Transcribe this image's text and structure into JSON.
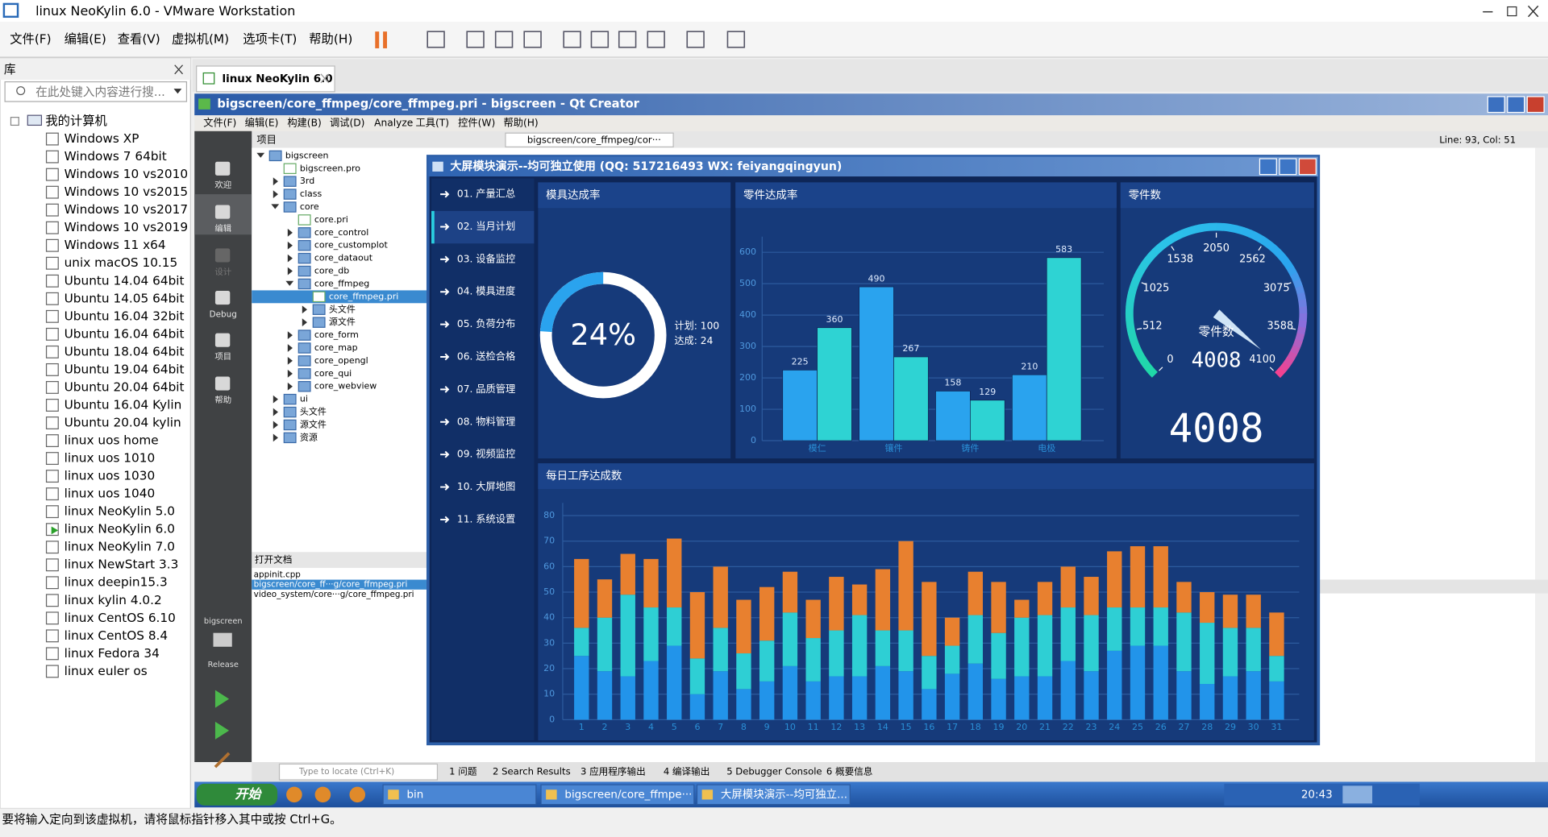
{
  "window": {
    "title": "linux NeoKylin 6.0 - VMware Workstation",
    "menu": [
      "文件(F)",
      "编辑(E)",
      "查看(V)",
      "虚拟机(M)",
      "选项卡(T)",
      "帮助(H)"
    ]
  },
  "library": {
    "title": "库",
    "search": "在此处键入内容进行搜...",
    "root": "我的计算机",
    "vms": [
      "Windows XP",
      "Windows 7 64bit",
      "Windows 10 vs2010",
      "Windows 10 vs2015",
      "Windows 10 vs2017",
      "Windows 10 vs2019",
      "Windows 11 x64",
      "unix macOS 10.15",
      "Ubuntu 14.04 64bit",
      "Ubuntu 14.05 64bit",
      "Ubuntu 16.04 32bit",
      "Ubuntu 16.04 64bit",
      "Ubuntu 18.04 64bit",
      "Ubuntu 19.04 64bit",
      "Ubuntu 20.04 64bit",
      "Ubuntu 16.04 Kylin",
      "Ubuntu 20.04 kylin",
      "linux uos home",
      "linux uos 1010",
      "linux uos 1030",
      "linux uos 1040",
      "linux NeoKylin 5.0",
      "linux NeoKylin 6.0",
      "linux NeoKylin 7.0",
      "linux NewStart 3.3",
      "linux deepin15.3",
      "linux kylin 4.0.2",
      "linux CentOS 6.10",
      "linux CentOS 8.4",
      "linux Fedora 34",
      "linux euler os"
    ],
    "running": 22
  },
  "vm_tab": "linux NeoKylin 6.0",
  "qt": {
    "title": "bigscreen/core_ffmpeg/core_ffmpeg.pri - bigscreen - Qt Creator",
    "menu": [
      "文件(F)",
      "编辑(E)",
      "构建(B)",
      "调试(D)",
      "Analyze",
      "工具(T)",
      "控件(W)",
      "帮助(H)"
    ],
    "modes": [
      "欢迎",
      "编辑",
      "设计",
      "Debug",
      "项目",
      "帮助"
    ],
    "projects_header": "项目",
    "tree": [
      {
        "label": "bigscreen",
        "level": 0,
        "kind": "folder-open"
      },
      {
        "label": "bigscreen.pro",
        "level": 1,
        "kind": "file"
      },
      {
        "label": "3rd",
        "level": 1,
        "kind": "folder"
      },
      {
        "label": "class",
        "level": 1,
        "kind": "folder"
      },
      {
        "label": "core",
        "level": 1,
        "kind": "folder-open"
      },
      {
        "label": "core.pri",
        "level": 2,
        "kind": "file"
      },
      {
        "label": "core_control",
        "level": 2,
        "kind": "folder"
      },
      {
        "label": "core_customplot",
        "level": 2,
        "kind": "folder"
      },
      {
        "label": "core_dataout",
        "level": 2,
        "kind": "folder"
      },
      {
        "label": "core_db",
        "level": 2,
        "kind": "folder"
      },
      {
        "label": "core_ffmpeg",
        "level": 2,
        "kind": "folder-open"
      },
      {
        "label": "core_ffmpeg.pri",
        "level": 3,
        "kind": "file"
      },
      {
        "label": "头文件",
        "level": 3,
        "kind": "folder"
      },
      {
        "label": "源文件",
        "level": 3,
        "kind": "folder"
      },
      {
        "label": "core_form",
        "level": 2,
        "kind": "folder"
      },
      {
        "label": "core_map",
        "level": 2,
        "kind": "folder"
      },
      {
        "label": "core_opengl",
        "level": 2,
        "kind": "folder"
      },
      {
        "label": "core_qui",
        "level": 2,
        "kind": "folder"
      },
      {
        "label": "core_webview",
        "level": 2,
        "kind": "folder"
      },
      {
        "label": "ui",
        "level": 1,
        "kind": "folder"
      },
      {
        "label": "头文件",
        "level": 1,
        "kind": "folder"
      },
      {
        "label": "源文件",
        "level": 1,
        "kind": "folder"
      },
      {
        "label": "资源",
        "level": 1,
        "kind": "folder"
      }
    ],
    "tree_selected": 11,
    "open_docs_header": "打开文档",
    "open_docs": [
      "appinit.cpp",
      "bigscreen/core_ff···g/core_ffmpeg.pri",
      "video_system/core···g/core_ffmpeg.pri"
    ],
    "open_docs_selected": 1,
    "file_combo": "bigscreen/core_ffmpeg/cor···",
    "cursor": "Line: 93, Col: 51",
    "kit": "bigscreen",
    "build": "Release",
    "locate": "Type to locate (Ctrl+K)",
    "output_tabs": [
      "1 问题",
      "2 Search Results",
      "3 应用程序输出",
      "4 编译输出",
      "5 Debugger Console",
      "6 概要信息"
    ]
  },
  "taskbar": {
    "start": "开始",
    "tasks": [
      "bin",
      "bigscreen/core_ffmpe···",
      "大屏模块演示--均可独立..."
    ],
    "clock": "20:43"
  },
  "status": "要将输入定向到该虚拟机，请将鼠标指针移入其中或按 Ctrl+G。",
  "app": {
    "title": "大屏模块演示--均可独立使用 (QQ: 517216493  WX: feiyangqingyun)",
    "nav": [
      "01. 产量汇总",
      "02. 当月计划",
      "03. 设备监控",
      "04. 模具进度",
      "05. 负荷分布",
      "06. 送检合格",
      "07. 品质管理",
      "08. 物料管理",
      "09. 视频监控",
      "10. 大屏地图",
      "11. 系统设置"
    ],
    "nav_selected": 1
  },
  "chart_data": [
    {
      "type": "donut",
      "title": "模具达成率",
      "percent": {
        "value": 24,
        "label": "24%"
      },
      "plan": {
        "value": 100,
        "label": "计划: 100"
      },
      "done": {
        "value": 24,
        "label": "达成: 24"
      },
      "color": "#2aa3ee",
      "track_color": "#ffffff"
    },
    {
      "type": "bar",
      "title": "零件达成率",
      "categories": [
        "模仁",
        "镶件",
        "铸件",
        "电极"
      ],
      "series": [
        {
          "color": "#2aa3ee",
          "values": [
            225,
            490,
            158,
            210
          ]
        },
        {
          "color": "#2ed3d3",
          "values": [
            360,
            267,
            129,
            583
          ]
        }
      ],
      "ylim": [
        0,
        650
      ],
      "yticks": [
        0,
        100,
        200,
        300,
        400,
        500,
        600
      ],
      "grid": true
    },
    {
      "type": "gauge",
      "title": "零件数",
      "label": "零件数",
      "value": 4008,
      "ylim": [
        0,
        4100
      ],
      "yticks": [
        0,
        512,
        1025,
        1538,
        2050,
        2562,
        3075,
        3588,
        4100
      ]
    },
    {
      "type": "stacked-bar",
      "title": "每日工序达成数",
      "categories": [
        "1",
        "2",
        "3",
        "4",
        "5",
        "6",
        "7",
        "8",
        "9",
        "10",
        "11",
        "12",
        "13",
        "14",
        "15",
        "16",
        "17",
        "18",
        "19",
        "20",
        "21",
        "22",
        "23",
        "24",
        "25",
        "26",
        "27",
        "28",
        "29",
        "30",
        "31"
      ],
      "series": [
        {
          "color": "#2294ea",
          "values": [
            25,
            19,
            17,
            23,
            29,
            10,
            19,
            12,
            15,
            21,
            15,
            17,
            17,
            21,
            19,
            12,
            18,
            22,
            16,
            17,
            17,
            23,
            19,
            27,
            29,
            29,
            19,
            14,
            17,
            19,
            15
          ]
        },
        {
          "color": "#2ecfd4",
          "values": [
            11,
            21,
            32,
            21,
            15,
            14,
            17,
            14,
            16,
            21,
            17,
            18,
            24,
            14,
            16,
            13,
            11,
            19,
            18,
            23,
            24,
            21,
            22,
            17,
            15,
            15,
            23,
            24,
            19,
            17,
            10
          ]
        },
        {
          "color": "#e8802f",
          "values": [
            27,
            15,
            16,
            19,
            27,
            26,
            24,
            21,
            21,
            16,
            15,
            21,
            12,
            24,
            35,
            29,
            11,
            17,
            20,
            7,
            13,
            16,
            15,
            22,
            24,
            24,
            12,
            12,
            13,
            13,
            17
          ]
        }
      ],
      "ylim": [
        0,
        85
      ],
      "yticks": [
        0,
        10,
        20,
        30,
        40,
        50,
        60,
        70,
        80
      ],
      "grid": true
    }
  ]
}
